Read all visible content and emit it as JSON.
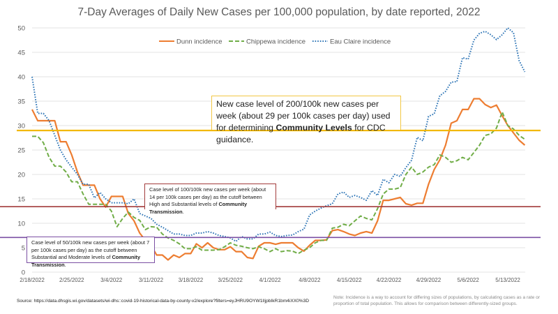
{
  "chart_data": {
    "type": "line",
    "title": "7-Day Averages of Daily New Cases per 100,000 population, by date reported, 2022",
    "ylim": [
      0,
      50
    ],
    "yticks": [
      0,
      5,
      10,
      15,
      20,
      25,
      30,
      35,
      40,
      45,
      50
    ],
    "xticks": [
      "2/18/2022",
      "2/25/2022",
      "3/4/2022",
      "3/11/2022",
      "3/18/2022",
      "3/25/2022",
      "4/1/2022",
      "4/8/2022",
      "4/15/2022",
      "4/22/2022",
      "4/29/2022",
      "5/6/2022",
      "5/13/2022"
    ],
    "grid": true,
    "legend_placement": "top",
    "x": [
      "2/18",
      "2/19",
      "2/20",
      "2/21",
      "2/22",
      "2/23",
      "2/24",
      "2/25",
      "2/26",
      "2/27",
      "2/28",
      "3/1",
      "3/2",
      "3/3",
      "3/4",
      "3/5",
      "3/6",
      "3/7",
      "3/8",
      "3/9",
      "3/10",
      "3/11",
      "3/12",
      "3/13",
      "3/14",
      "3/15",
      "3/16",
      "3/17",
      "3/18",
      "3/19",
      "3/20",
      "3/21",
      "3/22",
      "3/23",
      "3/24",
      "3/25",
      "3/26",
      "3/27",
      "3/28",
      "3/29",
      "3/30",
      "3/31",
      "4/1",
      "4/2",
      "4/3",
      "4/4",
      "4/5",
      "4/6",
      "4/7",
      "4/8",
      "4/9",
      "4/10",
      "4/11",
      "4/12",
      "4/13",
      "4/14",
      "4/15",
      "4/16",
      "4/17",
      "4/18",
      "4/19",
      "4/20",
      "4/21",
      "4/22",
      "4/23",
      "4/24",
      "4/25",
      "4/26",
      "4/27",
      "4/28",
      "4/29",
      "4/30",
      "5/1",
      "5/2",
      "5/3",
      "5/4",
      "5/5",
      "5/6",
      "5/7",
      "5/8",
      "5/9",
      "5/10",
      "5/11",
      "5/12",
      "5/13",
      "5/14",
      "5/15",
      "5/16"
    ],
    "series": [
      {
        "name": "Dunn incidence",
        "color": "#ed7d31",
        "style": "solid",
        "values": [
          33.3,
          31,
          31,
          31,
          31,
          26.7,
          26.7,
          24,
          20.5,
          17.8,
          17.8,
          17.8,
          15,
          13.3,
          15.5,
          15.5,
          15.5,
          12,
          10.5,
          8,
          6.5,
          5.5,
          3.5,
          3.5,
          2.5,
          3.5,
          3,
          3.8,
          3.8,
          5.8,
          5,
          6,
          5,
          4.6,
          4.6,
          5.2,
          4.2,
          4.2,
          3,
          2.8,
          5.3,
          6,
          6,
          5.7,
          6,
          6,
          6,
          5,
          4.3,
          5.5,
          6.5,
          6.5,
          6.6,
          8.5,
          8.7,
          8.3,
          7.8,
          7.5,
          8,
          8.3,
          8,
          10.5,
          14.7,
          14.7,
          15,
          15.3,
          14,
          13.7,
          14.1,
          14.1,
          18,
          21,
          23,
          26,
          30.5,
          31,
          33.3,
          33.3,
          35.5,
          35.5,
          34.3,
          33.7,
          34.2,
          32,
          30,
          28.5,
          27,
          26
        ]
      },
      {
        "name": "Chippewa incidence",
        "color": "#70ad47",
        "style": "dashed",
        "values": [
          27.8,
          27.8,
          26.5,
          23.5,
          21.7,
          21.7,
          20.5,
          18.5,
          18.5,
          16,
          13.9,
          13.9,
          13.9,
          13.9,
          12.5,
          9.3,
          11,
          12.3,
          11.2,
          10.6,
          8.7,
          9.3,
          9.2,
          7.8,
          7,
          6.5,
          5.8,
          4.8,
          4.8,
          5.2,
          4.5,
          4.5,
          4.5,
          4.6,
          5.2,
          6,
          5.5,
          5.3,
          5,
          4.8,
          5.2,
          4.8,
          4.2,
          4.8,
          4.2,
          4.4,
          4.3,
          3.8,
          4.5,
          5,
          6,
          6.5,
          6.5,
          9,
          9.2,
          9.8,
          9.5,
          10.5,
          11.5,
          11,
          10.7,
          13,
          16,
          17,
          17,
          17.3,
          20,
          21.5,
          20,
          20.5,
          21.5,
          22,
          24,
          23.5,
          22.5,
          22.8,
          23.5,
          23,
          24.5,
          26,
          28,
          28.3,
          29.5,
          32.8,
          30,
          29.3,
          28,
          27.2
        ]
      },
      {
        "name": "Eau Claire incidence",
        "color": "#2e75b6",
        "style": "dotted",
        "values": [
          40,
          32.5,
          32.5,
          31,
          28,
          25,
          23,
          21.5,
          20,
          18,
          18,
          15.2,
          16.3,
          15,
          14.2,
          14.2,
          14.2,
          14,
          15,
          12,
          11.5,
          11,
          9.8,
          9.2,
          8.5,
          7.8,
          7.8,
          7.5,
          7.5,
          8,
          8,
          8.3,
          8,
          7.5,
          7.3,
          7,
          6.3,
          7.3,
          6.8,
          6.8,
          7.8,
          7.8,
          8.2,
          7.5,
          7.3,
          7.5,
          7.6,
          8.3,
          8.8,
          11.7,
          12.5,
          13.1,
          13.6,
          14,
          16,
          16.4,
          15.3,
          15.7,
          15.3,
          14.7,
          16.7,
          15.7,
          19,
          18.3,
          20,
          19.6,
          21.4,
          22.9,
          27.6,
          26.9,
          31.9,
          32.4,
          36.1,
          37,
          38.9,
          39,
          43.9,
          43.6,
          47.5,
          48.9,
          49.3,
          48.6,
          47.6,
          48.6,
          50,
          49,
          43.3,
          41
        ]
      }
    ],
    "reference_lines": [
      {
        "value": 29,
        "color": "#f2b800",
        "label": "New case level of 200/100k new cases per week (about 29 per 100k cases per day) used for determining Community Levels for CDC guidance."
      },
      {
        "value": 13.4,
        "color": "#a23b3b",
        "label": "Case level of 100/100k new cases per week (about 14 per 100k cases per day) as the cutoff between High and Substantial levels of Community Transmission."
      },
      {
        "value": 7.1,
        "color": "#7b4fa3",
        "label": "Case level of 50/100k new cases per week (about 7 per 100k cases per day) as the cutoff between Substantial and Moderate levels of Community Transmission."
      }
    ]
  },
  "annotations": {
    "yellow": {
      "pre": "New case level of 200/100k new cases per week (about 29 per 100k cases per day) used for determining ",
      "bold": "Community Levels",
      "post": " for CDC guidance."
    },
    "red": {
      "pre": "Case level of 100/100k new cases per week (about 14 per 100k cases per day) as the cutoff between High and Substantial levels of ",
      "bold": "Community Transmission",
      "post": "."
    },
    "purple": {
      "pre": "Case level of 50/100k new cases per week (about 7 per 100k cases per day) as the cutoff between Substantial and Moderate levels of ",
      "bold": "Community Transmission",
      "post": "."
    }
  },
  "source": "Source: https://data.dhsgis.wi.gov/datasets/wi-dhs::covid-19-historical-data-by-county-v2/explore?filters=eyJHRU9OYW1lIjpbIkR1bm4iXX0%3D",
  "note": "Note:  Incidence is a way to account for differing sizes of populations, by calculating cases as a rate or proportion of total population.  This allows for comparison between differently-sized groups."
}
